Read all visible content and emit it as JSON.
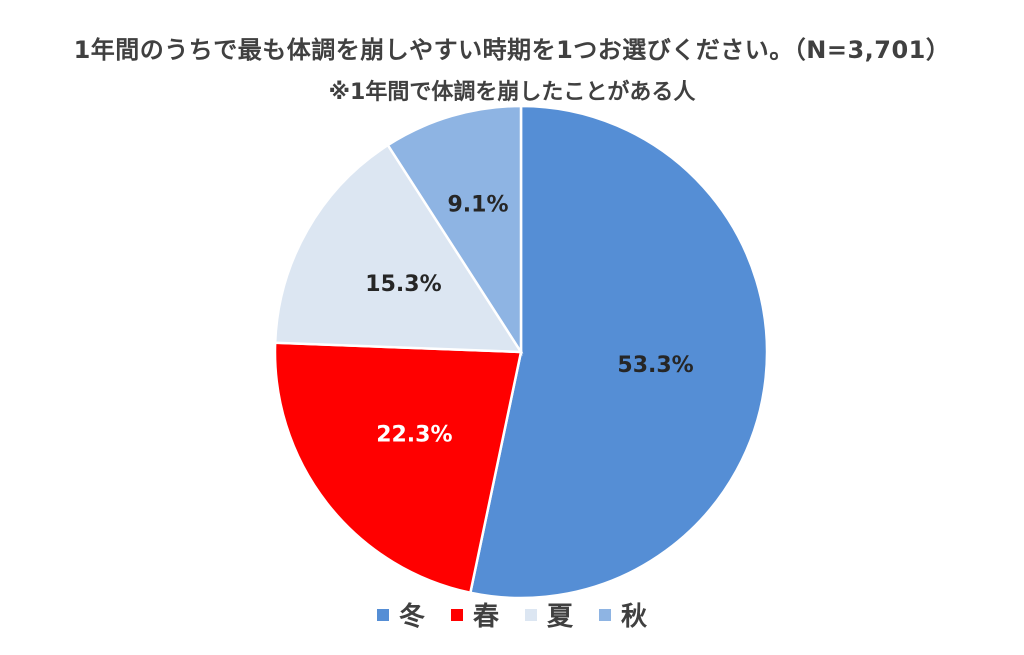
{
  "chart_data": {
    "type": "pie",
    "title": "1年間のうちで最も体調を崩しやすい時期を1つお選びください。（N=3,701）",
    "subtitle": "※1年間で体調を崩したことがある人",
    "labels": [
      "冬",
      "春",
      "夏",
      "秋"
    ],
    "values": [
      53.3,
      22.3,
      15.3,
      9.1
    ],
    "value_labels": [
      "53.3%",
      "22.3%",
      "15.3%",
      "9.1%"
    ],
    "colors": [
      "#558ED5",
      "#FF0000",
      "#DCE6F2",
      "#8EB4E3"
    ],
    "label_colors": [
      "#262626",
      "#FFFFFF",
      "#262626",
      "#262626"
    ],
    "legend_position": "bottom"
  }
}
